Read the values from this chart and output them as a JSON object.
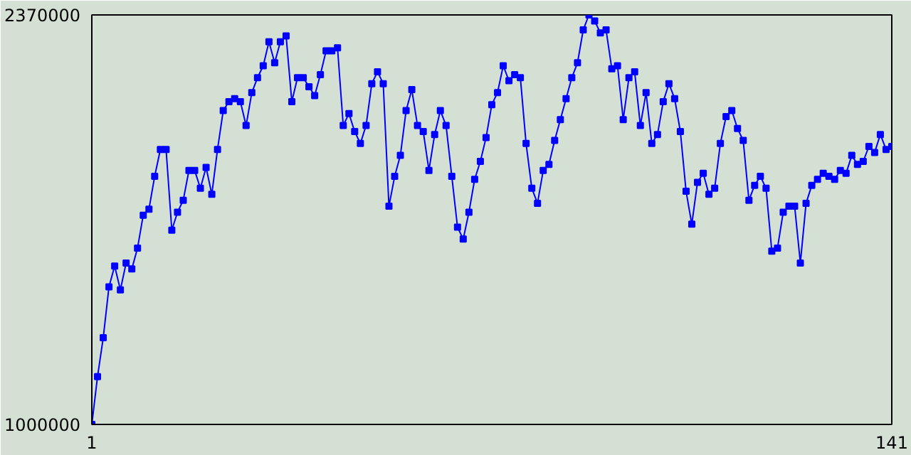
{
  "chart_data": {
    "type": "line",
    "x": [
      1,
      2,
      3,
      4,
      5,
      6,
      7,
      8,
      9,
      10,
      11,
      12,
      13,
      14,
      15,
      16,
      17,
      18,
      19,
      20,
      21,
      22,
      23,
      24,
      25,
      26,
      27,
      28,
      29,
      30,
      31,
      32,
      33,
      34,
      35,
      36,
      37,
      38,
      39,
      40,
      41,
      42,
      43,
      44,
      45,
      46,
      47,
      48,
      49,
      50,
      51,
      52,
      53,
      54,
      55,
      56,
      57,
      58,
      59,
      60,
      61,
      62,
      63,
      64,
      65,
      66,
      67,
      68,
      69,
      70,
      71,
      72,
      73,
      74,
      75,
      76,
      77,
      78,
      79,
      80,
      81,
      82,
      83,
      84,
      85,
      86,
      87,
      88,
      89,
      90,
      91,
      92,
      93,
      94,
      95,
      96,
      97,
      98,
      99,
      100,
      101,
      102,
      103,
      104,
      105,
      106,
      107,
      108,
      109,
      110,
      111,
      112,
      113,
      114,
      115,
      116,
      117,
      118,
      119,
      120,
      121,
      122,
      123,
      124,
      125,
      126,
      127,
      128,
      129,
      130,
      131,
      132,
      133,
      134,
      135,
      136,
      137,
      138,
      139,
      140,
      141
    ],
    "series": [
      {
        "color": "#0000ff",
        "values": [
          1000000,
          1160000,
          1290000,
          1460000,
          1530000,
          1450000,
          1540000,
          1520000,
          1590000,
          1700000,
          1720000,
          1830000,
          1920000,
          1920000,
          1650000,
          1710000,
          1750000,
          1850000,
          1850000,
          1790000,
          1860000,
          1770000,
          1920000,
          2050000,
          2080000,
          2090000,
          2080000,
          2000000,
          2110000,
          2160000,
          2200000,
          2280000,
          2210000,
          2280000,
          2300000,
          2080000,
          2160000,
          2160000,
          2130000,
          2100000,
          2170000,
          2250000,
          2250000,
          2260000,
          2000000,
          2040000,
          1980000,
          1940000,
          2000000,
          2140000,
          2180000,
          2140000,
          1730000,
          1830000,
          1900000,
          2050000,
          2120000,
          2000000,
          1980000,
          1850000,
          1970000,
          2050000,
          2000000,
          1830000,
          1660000,
          1620000,
          1710000,
          1820000,
          1880000,
          1960000,
          2070000,
          2110000,
          2200000,
          2150000,
          2170000,
          2160000,
          1940000,
          1790000,
          1740000,
          1850000,
          1870000,
          1950000,
          2020000,
          2090000,
          2160000,
          2210000,
          2320000,
          2370000,
          2350000,
          2310000,
          2320000,
          2190000,
          2200000,
          2020000,
          2160000,
          2180000,
          2000000,
          2110000,
          1940000,
          1970000,
          2080000,
          2140000,
          2090000,
          1980000,
          1780000,
          1670000,
          1810000,
          1840000,
          1770000,
          1790000,
          1940000,
          2030000,
          2050000,
          1990000,
          1950000,
          1750000,
          1800000,
          1830000,
          1790000,
          1580000,
          1590000,
          1710000,
          1730000,
          1730000,
          1540000,
          1740000,
          1800000,
          1820000,
          1840000,
          1830000,
          1820000,
          1850000,
          1840000,
          1900000,
          1870000,
          1880000,
          1930000,
          1910000,
          1970000,
          1920000,
          1930000
        ]
      }
    ],
    "xlim": [
      1,
      141
    ],
    "xticks": [
      1,
      141
    ],
    "ylim": [
      1000000,
      2370000
    ],
    "yticks": [
      1000000,
      2370000
    ],
    "marker": "square",
    "line_style": "solid"
  }
}
